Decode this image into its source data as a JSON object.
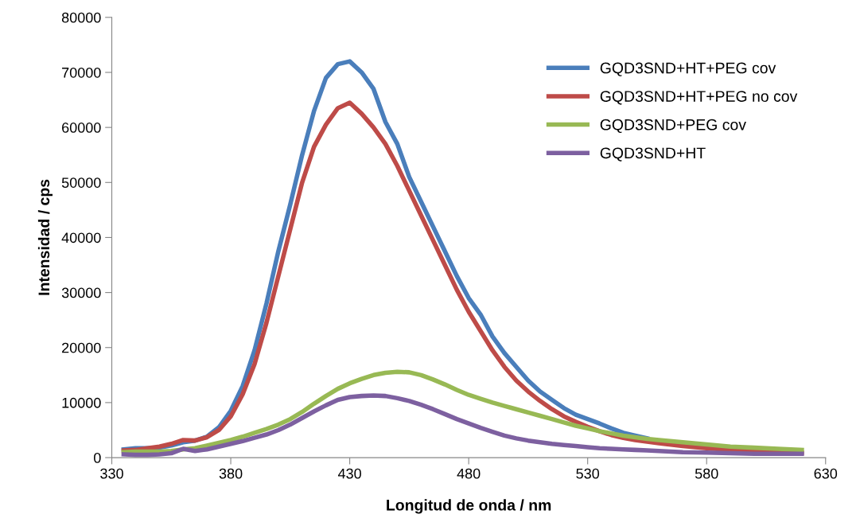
{
  "chart_data": {
    "type": "line",
    "xlabel": "Longitud de onda / nm",
    "ylabel": "Intensidad / cps",
    "x": [
      335,
      340,
      345,
      350,
      355,
      360,
      365,
      370,
      375,
      380,
      385,
      390,
      395,
      400,
      405,
      410,
      415,
      420,
      425,
      430,
      435,
      440,
      445,
      450,
      455,
      460,
      465,
      470,
      475,
      480,
      485,
      490,
      495,
      500,
      505,
      510,
      515,
      520,
      525,
      530,
      535,
      540,
      545,
      550,
      555,
      560,
      570,
      580,
      590,
      600,
      610,
      620
    ],
    "xlim": [
      330,
      630
    ],
    "xticks": [
      330,
      380,
      430,
      480,
      530,
      580,
      630
    ],
    "ylim": [
      0,
      80000
    ],
    "yticks": [
      0,
      10000,
      20000,
      30000,
      40000,
      50000,
      60000,
      70000,
      80000
    ],
    "grid": false,
    "legend": "top right",
    "marker": "none",
    "line_style": "solid",
    "series": [
      {
        "name": "GQD3SND+HT+PEG cov",
        "color": "#4a7ebb",
        "values": [
          1500,
          1700,
          1700,
          1800,
          2200,
          2800,
          3100,
          3800,
          5500,
          8500,
          13000,
          19500,
          28000,
          37500,
          46000,
          55000,
          63000,
          69000,
          71500,
          72000,
          70000,
          67000,
          61000,
          57000,
          51000,
          46500,
          42000,
          37500,
          33000,
          29000,
          26000,
          22000,
          19000,
          16500,
          14000,
          12000,
          10500,
          9000,
          7800,
          7000,
          6200,
          5300,
          4500,
          4000,
          3500,
          null,
          null,
          null,
          null,
          null,
          null,
          null
        ]
      },
      {
        "name": "GQD3SND+HT+PEG no cov",
        "color": "#be4b48",
        "values": [
          1300,
          1400,
          1700,
          2000,
          2500,
          3200,
          3100,
          3700,
          5000,
          7500,
          11500,
          17000,
          24500,
          33000,
          41500,
          50000,
          56500,
          60500,
          63500,
          64500,
          62500,
          60000,
          57000,
          53000,
          48500,
          44000,
          39500,
          35000,
          30500,
          26500,
          23000,
          19500,
          16500,
          14000,
          12000,
          10300,
          8800,
          7500,
          6500,
          5600,
          4800,
          4100,
          3600,
          3200,
          2900,
          2600,
          2100,
          1700,
          1400,
          1200,
          1000,
          900
        ]
      },
      {
        "name": "GQD3SND+PEG cov",
        "color": "#98b954",
        "values": [
          1000,
          1100,
          1100,
          1100,
          1200,
          1500,
          1700,
          2200,
          2700,
          3200,
          3800,
          4500,
          5200,
          6000,
          7000,
          8300,
          9800,
          11200,
          12500,
          13500,
          14300,
          15000,
          15400,
          15600,
          15500,
          15000,
          14200,
          13300,
          12300,
          11400,
          10700,
          10000,
          9400,
          8800,
          8200,
          7600,
          7000,
          6400,
          5800,
          5300,
          4800,
          4400,
          4000,
          3700,
          3400,
          3200,
          2800,
          2400,
          2000,
          1800,
          1600,
          1400
        ]
      },
      {
        "name": "GQD3SND+HT",
        "color": "#7d60a0",
        "values": [
          600,
          500,
          500,
          600,
          800,
          1600,
          1200,
          1500,
          2000,
          2500,
          3000,
          3600,
          4200,
          5000,
          6000,
          7200,
          8400,
          9500,
          10500,
          11000,
          11200,
          11300,
          11200,
          10800,
          10300,
          9600,
          8800,
          7900,
          7000,
          6200,
          5400,
          4700,
          4000,
          3500,
          3100,
          2800,
          2500,
          2300,
          2100,
          1900,
          1700,
          1600,
          1500,
          1400,
          1300,
          1200,
          1000,
          900,
          800,
          700,
          700,
          700
        ]
      }
    ]
  }
}
